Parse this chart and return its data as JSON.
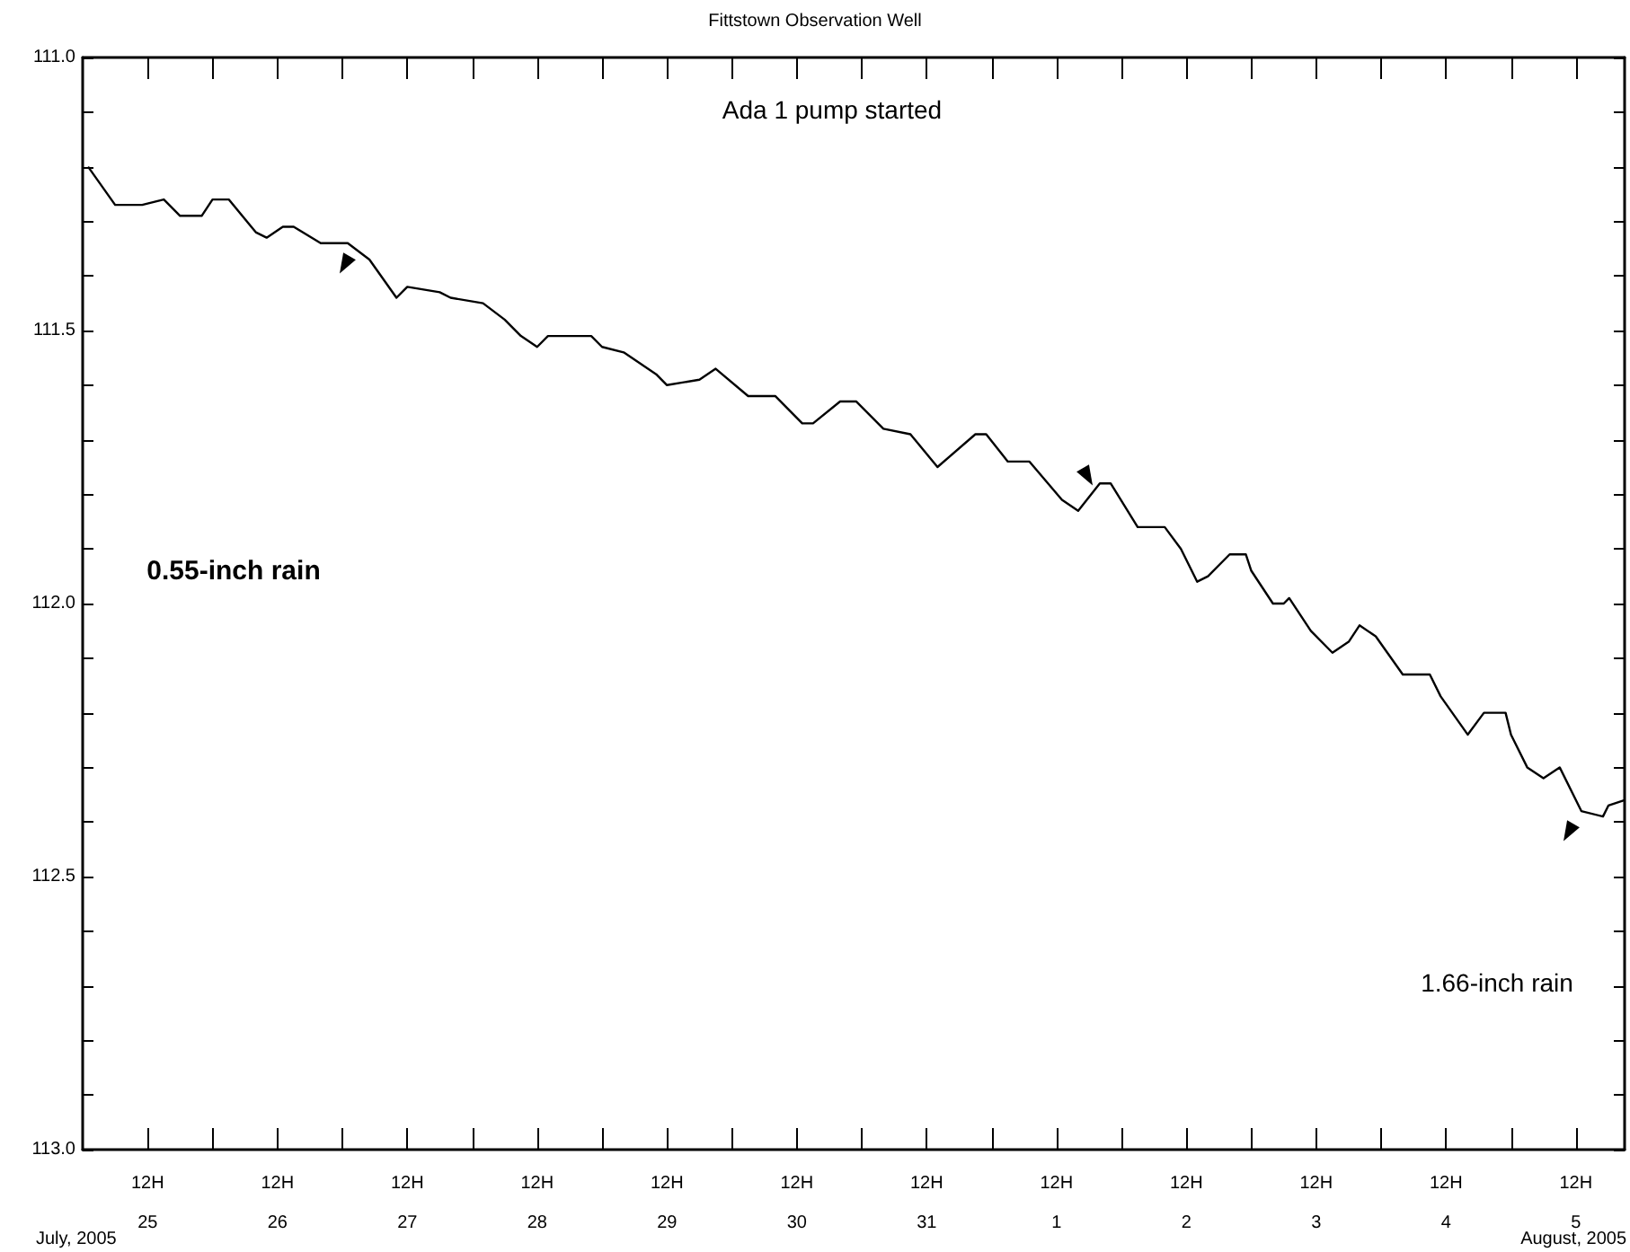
{
  "chart_data": {
    "type": "line",
    "title": "Fittstown Observation Well",
    "x": [
      "2005-07-25T01:00",
      "2005-07-25T06:00",
      "2005-07-25T11:00",
      "2005-07-25T15:00",
      "2005-07-25T18:00",
      "2005-07-25T22:00",
      "2005-07-26T00:00",
      "2005-07-26T03:00",
      "2005-07-26T08:00",
      "2005-07-26T10:00",
      "2005-07-26T13:00",
      "2005-07-26T15:00",
      "2005-07-26T20:00",
      "2005-07-27T01:00",
      "2005-07-27T05:00",
      "2005-07-27T10:00",
      "2005-07-27T12:00",
      "2005-07-27T18:00",
      "2005-07-27T20:00",
      "2005-07-28T02:00",
      "2005-07-28T06:00",
      "2005-07-28T09:00",
      "2005-07-28T12:00",
      "2005-07-28T14:00",
      "2005-07-28T22:00",
      "2005-07-29T00:00",
      "2005-07-29T04:00",
      "2005-07-29T10:00",
      "2005-07-29T12:00",
      "2005-07-29T18:00",
      "2005-07-29T21:00",
      "2005-07-30T03:00",
      "2005-07-30T08:00",
      "2005-07-30T13:00",
      "2005-07-30T15:00",
      "2005-07-30T20:00",
      "2005-07-30T23:00",
      "2005-07-31T04:00",
      "2005-07-31T09:00",
      "2005-07-31T14:00",
      "2005-07-31T21:00",
      "2005-07-31T23:00",
      "2005-08-01T03:00",
      "2005-08-01T07:00",
      "2005-08-01T13:00",
      "2005-08-01T16:00",
      "2005-08-01T20:00",
      "2005-08-01T22:00",
      "2005-08-02T03:00",
      "2005-08-02T08:00",
      "2005-08-02T11:00",
      "2005-08-02T14:00",
      "2005-08-02T16:00",
      "2005-08-02T20:00",
      "2005-08-02T23:00",
      "2005-08-03T00:00",
      "2005-08-03T04:00",
      "2005-08-03T06:00",
      "2005-08-03T07:00",
      "2005-08-03T11:00",
      "2005-08-03T15:00",
      "2005-08-03T18:00",
      "2005-08-03T20:00",
      "2005-08-03T23:00",
      "2005-08-04T04:00",
      "2005-08-04T09:00",
      "2005-08-04T11:00",
      "2005-08-04T16:00",
      "2005-08-04T19:00",
      "2005-08-04T23:00",
      "2005-08-05T00:00",
      "2005-08-05T03:00",
      "2005-08-05T06:00",
      "2005-08-05T09:00",
      "2005-08-05T13:00",
      "2005-08-05T17:00",
      "2005-08-05T18:00",
      "2005-08-05T21:00"
    ],
    "series": [
      {
        "color": "#000000",
        "values": [
          111.2,
          111.27,
          111.27,
          111.26,
          111.29,
          111.29,
          111.26,
          111.26,
          111.32,
          111.33,
          111.31,
          111.31,
          111.34,
          111.34,
          111.37,
          111.44,
          111.42,
          111.43,
          111.44,
          111.45,
          111.48,
          111.51,
          111.53,
          111.51,
          111.51,
          111.53,
          111.54,
          111.58,
          111.6,
          111.59,
          111.57,
          111.62,
          111.62,
          111.67,
          111.67,
          111.63,
          111.63,
          111.68,
          111.69,
          111.75,
          111.69,
          111.69,
          111.74,
          111.74,
          111.81,
          111.83,
          111.78,
          111.78,
          111.86,
          111.86,
          111.9,
          111.96,
          111.95,
          111.91,
          111.91,
          111.94,
          112.0,
          112.0,
          111.99,
          112.05,
          112.09,
          112.07,
          112.04,
          112.06,
          112.13,
          112.13,
          112.17,
          112.24,
          112.2,
          112.2,
          112.24,
          112.3,
          112.32,
          112.3,
          112.38,
          112.39,
          112.37,
          112.36
        ]
      }
    ],
    "xlim": [
      "2005-07-25T00:00",
      "2005-08-05T21:00"
    ],
    "xticks": [
      {
        "value": "2005-07-25T12:00",
        "label": "12H\n25"
      },
      {
        "value": "2005-07-26T00:00",
        "label": null
      },
      {
        "value": "2005-07-26T12:00",
        "label": "12H\n26"
      },
      {
        "value": "2005-07-27T00:00",
        "label": null
      },
      {
        "value": "2005-07-27T12:00",
        "label": "12H\n27"
      },
      {
        "value": "2005-07-28T00:00",
        "label": null
      },
      {
        "value": "2005-07-28T12:00",
        "label": "12H\n28"
      },
      {
        "value": "2005-07-29T00:00",
        "label": null
      },
      {
        "value": "2005-07-29T12:00",
        "label": "12H\n29"
      },
      {
        "value": "2005-07-30T00:00",
        "label": null
      },
      {
        "value": "2005-07-30T12:00",
        "label": "12H\n30"
      },
      {
        "value": "2005-07-31T00:00",
        "label": null
      },
      {
        "value": "2005-07-31T12:00",
        "label": "12H\n31"
      },
      {
        "value": "2005-08-01T00:00",
        "label": null
      },
      {
        "value": "2005-08-01T12:00",
        "label": "12H\n1"
      },
      {
        "value": "2005-08-02T00:00",
        "label": null
      },
      {
        "value": "2005-08-02T12:00",
        "label": "12H\n2"
      },
      {
        "value": "2005-08-03T00:00",
        "label": null
      },
      {
        "value": "2005-08-03T12:00",
        "label": "12H\n3"
      },
      {
        "value": "2005-08-04T00:00",
        "label": null
      },
      {
        "value": "2005-08-04T12:00",
        "label": "12H\n4"
      },
      {
        "value": "2005-08-05T00:00",
        "label": null
      },
      {
        "value": "2005-08-05T12:00",
        "label": "12H\n5"
      }
    ],
    "ylim": [
      113.0,
      111.0
    ],
    "yticks": [
      {
        "value": 111.0,
        "label": "111.0"
      },
      {
        "value": 111.1,
        "label": null
      },
      {
        "value": 111.2,
        "label": null
      },
      {
        "value": 111.3,
        "label": null
      },
      {
        "value": 111.4,
        "label": null
      },
      {
        "value": 111.5,
        "label": "111.5"
      },
      {
        "value": 111.6,
        "label": null
      },
      {
        "value": 111.7,
        "label": null
      },
      {
        "value": 111.8,
        "label": null
      },
      {
        "value": 111.9,
        "label": null
      },
      {
        "value": 112.0,
        "label": "112.0"
      },
      {
        "value": 112.1,
        "label": null
      },
      {
        "value": 112.2,
        "label": null
      },
      {
        "value": 112.3,
        "label": null
      },
      {
        "value": 112.4,
        "label": null
      },
      {
        "value": 112.5,
        "label": "112.5"
      },
      {
        "value": 112.6,
        "label": null
      },
      {
        "value": 112.7,
        "label": null
      },
      {
        "value": 112.8,
        "label": null
      },
      {
        "value": 112.9,
        "label": null
      },
      {
        "value": 113.0,
        "label": "113.0"
      }
    ],
    "annotations": [
      "Ada 1 pump started",
      "0.55-inch rain",
      "1.66-inch rain",
      "July, 2005",
      "August, 2005"
    ],
    "grid": false,
    "marker": "none",
    "line_style": "solid"
  }
}
